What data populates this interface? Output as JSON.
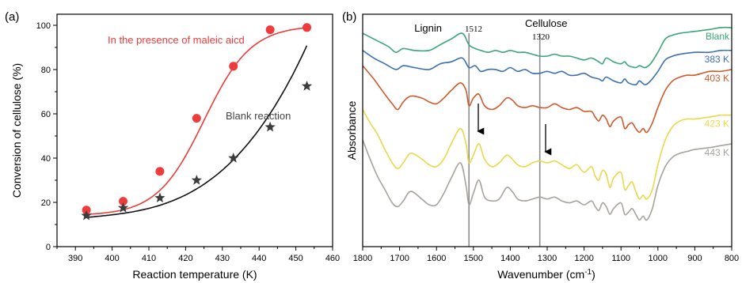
{
  "chart_data": [
    {
      "panel_label": "(a)",
      "type": "line",
      "xlabel": "Reaction temperature (K)",
      "ylabel": "Conversion of cellulose (%)",
      "xlim": [
        385,
        460
      ],
      "ylim": [
        0,
        105
      ],
      "x_ticks": [
        390,
        400,
        410,
        420,
        430,
        440,
        450,
        460
      ],
      "y_ticks": [
        0,
        20,
        40,
        60,
        80,
        100
      ],
      "series": [
        {
          "name": "In the presence of maleic aicd",
          "marker": "circle",
          "color": "#ee3b3b",
          "x": [
            393,
            403,
            413,
            423,
            433,
            443,
            453
          ],
          "y": [
            16.5,
            20.5,
            34,
            58,
            81.5,
            98,
            99
          ]
        },
        {
          "name": "Blank reaction",
          "marker": "star",
          "color": "#3c3c3c",
          "x": [
            393,
            403,
            413,
            423,
            433,
            443,
            453
          ],
          "y": [
            14,
            17.5,
            22,
            30,
            40,
            54,
            72.5
          ]
        }
      ]
    },
    {
      "panel_label": "(b)",
      "type": "line",
      "xlabel": "Wavenumber (cm",
      "xlabel_sup": "-1",
      "xlabel_tail": ")",
      "ylabel": "Absorbance",
      "xlim": [
        1800,
        800
      ],
      "x_ticks": [
        1800,
        1700,
        1600,
        1500,
        1400,
        1300,
        1200,
        1100,
        1000,
        900,
        800
      ],
      "markers": [
        {
          "name": "Lignin",
          "value": "1512",
          "x": 1512
        },
        {
          "name": "Cellulose",
          "value": "1320",
          "x": 1320
        }
      ],
      "series": [
        {
          "name": "Blank",
          "color": "#3aa57a",
          "x": [
            1800,
            1760,
            1730,
            1710,
            1690,
            1660,
            1620,
            1590,
            1560,
            1530,
            1512,
            1495,
            1480,
            1460,
            1440,
            1420,
            1400,
            1380,
            1360,
            1340,
            1320,
            1300,
            1280,
            1260,
            1240,
            1220,
            1200,
            1180,
            1160,
            1150,
            1140,
            1120,
            1100,
            1090,
            1080,
            1060,
            1050,
            1035,
            1020,
            1000,
            980,
            960,
            940,
            900,
            860,
            830,
            800
          ],
          "y": [
            0.96,
            0.92,
            0.89,
            0.86,
            0.88,
            0.87,
            0.87,
            0.9,
            0.93,
            0.96,
            0.9,
            0.88,
            0.87,
            0.86,
            0.87,
            0.86,
            0.87,
            0.86,
            0.86,
            0.85,
            0.84,
            0.84,
            0.85,
            0.84,
            0.84,
            0.83,
            0.82,
            0.83,
            0.81,
            0.8,
            0.83,
            0.81,
            0.8,
            0.81,
            0.79,
            0.78,
            0.79,
            0.78,
            0.8,
            0.86,
            0.93,
            0.95,
            0.96,
            0.97,
            0.98,
            0.99,
            0.99
          ]
        },
        {
          "name": "383 K",
          "color": "#3a6fb0",
          "x": [
            1800,
            1770,
            1740,
            1710,
            1690,
            1660,
            1620,
            1590,
            1560,
            1530,
            1512,
            1495,
            1480,
            1460,
            1440,
            1420,
            1400,
            1380,
            1360,
            1340,
            1320,
            1300,
            1280,
            1260,
            1240,
            1220,
            1200,
            1180,
            1160,
            1150,
            1140,
            1120,
            1100,
            1090,
            1080,
            1060,
            1050,
            1035,
            1020,
            1000,
            980,
            960,
            940,
            900,
            860,
            830,
            800
          ],
          "y": [
            0.87,
            0.83,
            0.8,
            0.77,
            0.79,
            0.78,
            0.77,
            0.8,
            0.81,
            0.83,
            0.78,
            0.79,
            0.76,
            0.77,
            0.77,
            0.76,
            0.78,
            0.76,
            0.77,
            0.75,
            0.75,
            0.76,
            0.75,
            0.76,
            0.74,
            0.74,
            0.75,
            0.73,
            0.72,
            0.71,
            0.73,
            0.71,
            0.7,
            0.72,
            0.7,
            0.69,
            0.71,
            0.69,
            0.71,
            0.76,
            0.82,
            0.84,
            0.85,
            0.86,
            0.86,
            0.87,
            0.87
          ]
        },
        {
          "name": "403 K",
          "color": "#cf5a2a",
          "x": [
            1800,
            1770,
            1740,
            1720,
            1705,
            1690,
            1670,
            1640,
            1620,
            1600,
            1580,
            1560,
            1535,
            1520,
            1512,
            1500,
            1485,
            1470,
            1450,
            1430,
            1410,
            1395,
            1380,
            1360,
            1340,
            1320,
            1300,
            1280,
            1260,
            1240,
            1220,
            1200,
            1180,
            1170,
            1160,
            1150,
            1140,
            1130,
            1120,
            1100,
            1090,
            1080,
            1070,
            1060,
            1050,
            1040,
            1030,
            1015,
            1000,
            980,
            960,
            940,
            920,
            900,
            860,
            830,
            800
          ],
          "y": [
            0.79,
            0.72,
            0.64,
            0.59,
            0.56,
            0.6,
            0.63,
            0.62,
            0.6,
            0.59,
            0.62,
            0.66,
            0.7,
            0.66,
            0.58,
            0.62,
            0.64,
            0.58,
            0.56,
            0.58,
            0.62,
            0.61,
            0.58,
            0.57,
            0.58,
            0.57,
            0.57,
            0.59,
            0.57,
            0.56,
            0.57,
            0.55,
            0.55,
            0.52,
            0.5,
            0.53,
            0.51,
            0.47,
            0.5,
            0.52,
            0.46,
            0.48,
            0.49,
            0.46,
            0.44,
            0.46,
            0.44,
            0.49,
            0.57,
            0.66,
            0.71,
            0.73,
            0.74,
            0.74,
            0.76,
            0.76,
            0.77
          ]
        },
        {
          "name": "423 K",
          "color": "#ead84a",
          "x": [
            1800,
            1780,
            1760,
            1740,
            1720,
            1705,
            1690,
            1670,
            1640,
            1620,
            1600,
            1580,
            1560,
            1535,
            1520,
            1512,
            1500,
            1485,
            1470,
            1450,
            1430,
            1410,
            1395,
            1380,
            1360,
            1340,
            1320,
            1300,
            1280,
            1260,
            1240,
            1220,
            1200,
            1180,
            1170,
            1160,
            1150,
            1140,
            1130,
            1120,
            1100,
            1090,
            1080,
            1070,
            1060,
            1050,
            1040,
            1030,
            1015,
            1000,
            980,
            960,
            940,
            920,
            900,
            860,
            830,
            800
          ],
          "y": [
            0.56,
            0.49,
            0.43,
            0.35,
            0.28,
            0.25,
            0.28,
            0.33,
            0.3,
            0.27,
            0.26,
            0.3,
            0.38,
            0.46,
            0.38,
            0.28,
            0.32,
            0.38,
            0.3,
            0.26,
            0.28,
            0.32,
            0.3,
            0.27,
            0.26,
            0.28,
            0.29,
            0.28,
            0.29,
            0.27,
            0.25,
            0.27,
            0.23,
            0.26,
            0.21,
            0.19,
            0.24,
            0.22,
            0.15,
            0.2,
            0.23,
            0.14,
            0.16,
            0.18,
            0.13,
            0.09,
            0.11,
            0.09,
            0.14,
            0.27,
            0.4,
            0.47,
            0.5,
            0.51,
            0.51,
            0.52,
            0.53,
            0.53
          ]
        },
        {
          "name": "443 K",
          "color": "#a7a29b",
          "x": [
            1800,
            1780,
            1760,
            1740,
            1720,
            1705,
            1690,
            1670,
            1640,
            1620,
            1600,
            1580,
            1560,
            1535,
            1520,
            1512,
            1500,
            1485,
            1470,
            1450,
            1430,
            1410,
            1395,
            1380,
            1360,
            1340,
            1320,
            1300,
            1280,
            1260,
            1240,
            1220,
            1200,
            1180,
            1170,
            1160,
            1150,
            1140,
            1130,
            1120,
            1100,
            1090,
            1080,
            1070,
            1060,
            1050,
            1040,
            1030,
            1015,
            1000,
            980,
            960,
            940,
            920,
            900,
            860,
            830,
            800
          ],
          "y": [
            0.4,
            0.3,
            0.21,
            0.14,
            0.07,
            0.05,
            0.08,
            0.13,
            0.09,
            0.06,
            0.06,
            0.12,
            0.2,
            0.28,
            0.16,
            0.06,
            0.12,
            0.19,
            0.1,
            0.08,
            0.09,
            0.15,
            0.13,
            0.09,
            0.08,
            0.09,
            0.1,
            0.09,
            0.1,
            0.08,
            0.07,
            0.08,
            0.06,
            0.08,
            0.05,
            0.03,
            0.07,
            0.05,
            0.01,
            0.04,
            0.07,
            0.01,
            0.02,
            0.04,
            0.01,
            -0.02,
            0.0,
            -0.02,
            0.04,
            0.16,
            0.26,
            0.31,
            0.33,
            0.34,
            0.35,
            0.36,
            0.37,
            0.38
          ]
        }
      ]
    }
  ]
}
